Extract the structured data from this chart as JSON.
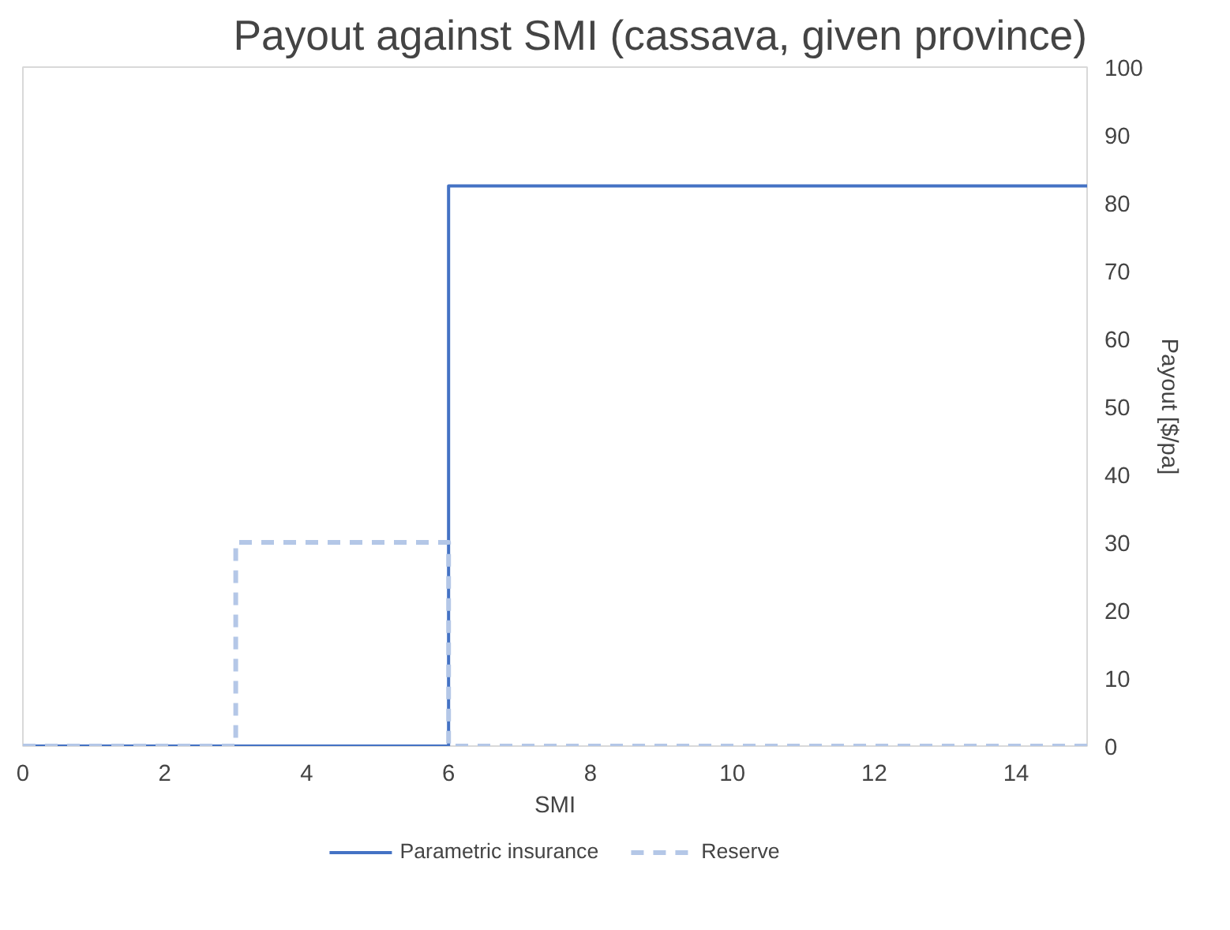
{
  "chart_data": {
    "type": "line",
    "title": "Payout against SMI (cassava, given province)",
    "xlabel": "SMI",
    "ylabel": "Payout [$/pa]",
    "xlim": [
      0,
      15
    ],
    "xticks": [
      0,
      2,
      4,
      6,
      8,
      10,
      12,
      14
    ],
    "ylim": [
      0,
      100
    ],
    "yticks": [
      0,
      10,
      20,
      30,
      40,
      50,
      60,
      70,
      80,
      90,
      100
    ],
    "series": [
      {
        "name": "Parametric insurance",
        "color": "#4472c4",
        "x": [
          0,
          6,
          6,
          15
        ],
        "values": [
          0,
          0,
          82.5,
          82.5
        ],
        "line_style": "solid"
      },
      {
        "name": "Reserve",
        "color": "#b4c7e7",
        "x": [
          0,
          3,
          3,
          6,
          6,
          15
        ],
        "values": [
          0,
          0,
          30,
          30,
          0,
          0
        ],
        "line_style": "dashed"
      }
    ],
    "grid": false,
    "legend": "bottom",
    "marker": "none"
  }
}
